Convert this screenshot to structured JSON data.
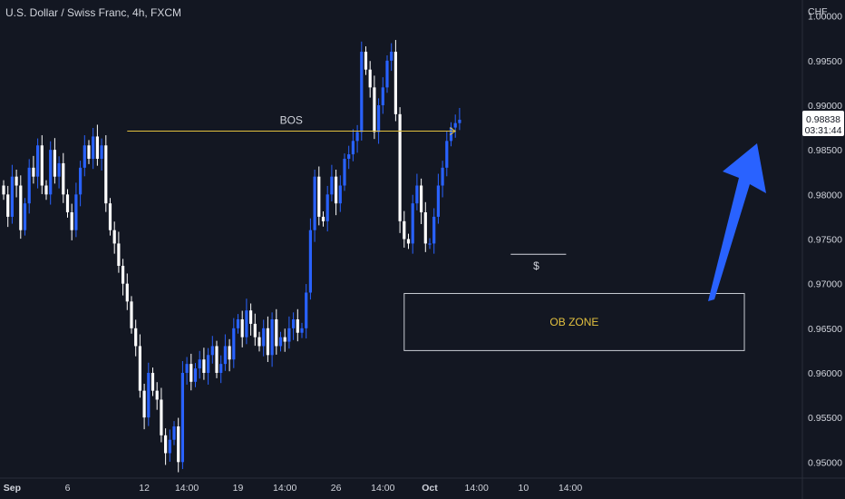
{
  "header": {
    "symbol_title": "U.S. Dollar / Swiss Franc, 4h, FXCM"
  },
  "colors": {
    "background": "#131722",
    "bull": "#2962ff",
    "bear": "#ffffff",
    "annotation": "#e2c03f",
    "box": "#c9ccd4",
    "arrow": "#2962ff"
  },
  "chart_data": {
    "type": "candlestick",
    "currency_label": "CHF",
    "y_ticks": [
      "1.00000",
      "0.99500",
      "0.99000",
      "0.98500",
      "0.98000",
      "0.97500",
      "0.97000",
      "0.96500",
      "0.96000",
      "0.95500",
      "0.95000"
    ],
    "ylim": [
      0.9482,
      1.0018
    ],
    "x_ticks": [
      {
        "label": "Sep",
        "bar": 2,
        "bold": true
      },
      {
        "label": "6",
        "bar": 15
      },
      {
        "label": "12",
        "bar": 33
      },
      {
        "label": "14:00",
        "bar": 43
      },
      {
        "label": "19",
        "bar": 55
      },
      {
        "label": "14:00",
        "bar": 66
      },
      {
        "label": "26",
        "bar": 78
      },
      {
        "label": "14:00",
        "bar": 89
      },
      {
        "label": "Oct",
        "bar": 100,
        "bold": true
      },
      {
        "label": "14:00",
        "bar": 111
      },
      {
        "label": "10",
        "bar": 122
      },
      {
        "label": "14:00",
        "bar": 133
      }
    ],
    "current_price": {
      "value": "0.98838",
      "countdown": "03:31:44"
    },
    "closes": [
      0.98,
      0.9775,
      0.982,
      0.981,
      0.976,
      0.979,
      0.983,
      0.982,
      0.9855,
      0.981,
      0.98,
      0.985,
      0.982,
      0.9835,
      0.98,
      0.978,
      0.976,
      0.98,
      0.983,
      0.9855,
      0.984,
      0.9865,
      0.984,
      0.9855,
      0.979,
      0.976,
      0.9745,
      0.972,
      0.97,
      0.968,
      0.965,
      0.963,
      0.958,
      0.955,
      0.96,
      0.958,
      0.957,
      0.953,
      0.951,
      0.9525,
      0.954,
      0.95,
      0.96,
      0.961,
      0.959,
      0.9605,
      0.9615,
      0.96,
      0.962,
      0.963,
      0.96,
      0.961,
      0.963,
      0.9615,
      0.965,
      0.966,
      0.964,
      0.967,
      0.9655,
      0.964,
      0.963,
      0.965,
      0.962,
      0.966,
      0.963,
      0.964,
      0.9635,
      0.965,
      0.966,
      0.9645,
      0.965,
      0.969,
      0.976,
      0.982,
      0.9775,
      0.977,
      0.98,
      0.982,
      0.979,
      0.981,
      0.984,
      0.9845,
      0.986,
      0.987,
      0.996,
      0.994,
      0.992,
      0.987,
      0.99,
      0.992,
      0.995,
      0.996,
      0.989,
      0.977,
      0.975,
      0.9745,
      0.979,
      0.981,
      0.978,
      0.9745,
      0.9745,
      0.9775,
      0.981,
      0.983,
      0.986,
      0.9875,
      0.988,
      0.98838
    ],
    "annotations": {
      "bos": "BOS",
      "liquidity": "$",
      "zone": "OB ZONE"
    },
    "ob_zone": {
      "top": 0.9689,
      "bottom": 0.9625
    }
  }
}
